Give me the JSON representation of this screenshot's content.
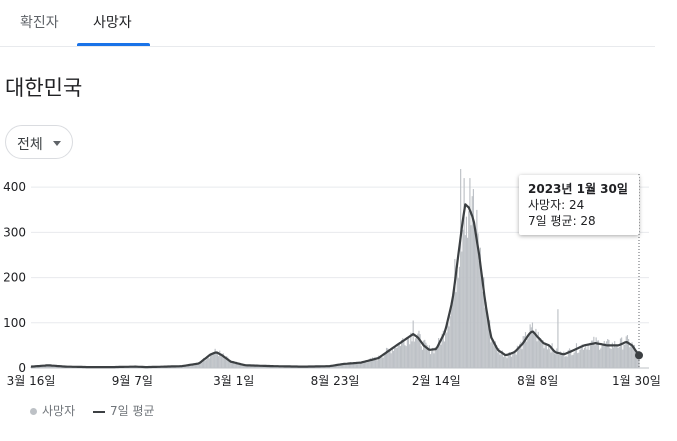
{
  "tabs": [
    "확진자",
    "사망자"
  ],
  "active_tab": 1,
  "title": "대한민국",
  "filter": {
    "selected": "전체"
  },
  "tooltip": {
    "date": "2023년 1월 30일",
    "deaths": "사망자: 24",
    "avg": "7일 평균: 28"
  },
  "legend": {
    "bars": "사망자",
    "line": "7일 평균"
  },
  "colors": {
    "bars": "#bdc1c6",
    "line": "#3c4043",
    "grid": "#e8eaed",
    "accent": "#1a73e8"
  },
  "chart_data": {
    "type": "bar",
    "title": "",
    "xlabel": "",
    "ylabel": "",
    "ylim": [
      0,
      460
    ],
    "yticks": [
      0,
      100,
      200,
      300,
      400
    ],
    "xticks": [
      "3월 16일",
      "9월 7일",
      "3월 1일",
      "8월 23일",
      "2월 14일",
      "8월 8일",
      "1월 30일"
    ],
    "xtick_index": [
      0,
      175,
      350,
      525,
      700,
      875,
      1050
    ],
    "series": [
      {
        "name": "7일 평균",
        "points": [
          [
            0,
            3
          ],
          [
            30,
            6
          ],
          [
            60,
            3
          ],
          [
            100,
            2
          ],
          [
            140,
            2
          ],
          [
            180,
            3
          ],
          [
            200,
            2
          ],
          [
            260,
            4
          ],
          [
            290,
            10
          ],
          [
            310,
            30
          ],
          [
            320,
            35
          ],
          [
            330,
            28
          ],
          [
            345,
            14
          ],
          [
            370,
            6
          ],
          [
            420,
            4
          ],
          [
            470,
            3
          ],
          [
            515,
            4
          ],
          [
            540,
            9
          ],
          [
            570,
            12
          ],
          [
            600,
            22
          ],
          [
            620,
            40
          ],
          [
            645,
            62
          ],
          [
            660,
            75
          ],
          [
            668,
            68
          ],
          [
            678,
            50
          ],
          [
            688,
            40
          ],
          [
            700,
            42
          ],
          [
            715,
            80
          ],
          [
            728,
            150
          ],
          [
            738,
            250
          ],
          [
            745,
            320
          ],
          [
            750,
            362
          ],
          [
            756,
            355
          ],
          [
            764,
            330
          ],
          [
            774,
            250
          ],
          [
            784,
            150
          ],
          [
            794,
            70
          ],
          [
            806,
            40
          ],
          [
            820,
            28
          ],
          [
            835,
            35
          ],
          [
            850,
            55
          ],
          [
            860,
            75
          ],
          [
            866,
            82
          ],
          [
            874,
            70
          ],
          [
            885,
            55
          ],
          [
            895,
            50
          ],
          [
            905,
            35
          ],
          [
            920,
            30
          ],
          [
            935,
            38
          ],
          [
            955,
            50
          ],
          [
            975,
            55
          ],
          [
            995,
            50
          ],
          [
            1015,
            50
          ],
          [
            1028,
            58
          ],
          [
            1038,
            50
          ],
          [
            1050,
            28
          ]
        ]
      }
    ],
    "bars_note": "daily values follow the average with day-to-day noise",
    "peak_spikes": [
      [
        745,
        455
      ],
      [
        742,
        440
      ],
      [
        748,
        420
      ],
      [
        758,
        420
      ],
      [
        762,
        380
      ],
      [
        785,
        260
      ],
      [
        660,
        105
      ],
      [
        865,
        110
      ],
      [
        910,
        130
      ]
    ],
    "highlight": {
      "index": 1050,
      "value": 28
    }
  }
}
